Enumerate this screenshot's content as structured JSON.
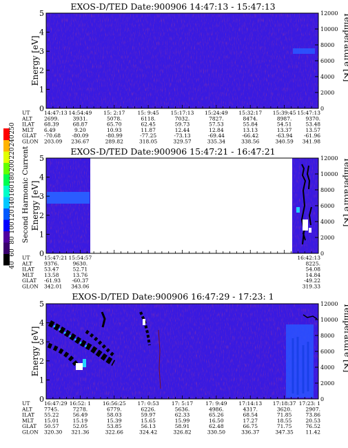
{
  "chart_data": [
    {
      "type": "heatmap",
      "title": "EXOS-D/TED   Date:900906  14:47:13 - 15:47:13",
      "ylabel": "Energy [eV]",
      "y2label": "Temperature [K]",
      "ylim": [
        0,
        5
      ],
      "yticks": [
        "0",
        "1",
        "2",
        "3",
        "4",
        "5"
      ],
      "y2lim": [
        0,
        12000
      ],
      "y2ticks": [
        "0",
        "2000",
        "4000",
        "6000",
        "8000",
        "10000",
        "12000"
      ],
      "data_coverage": [
        0,
        1
      ],
      "background_level": 40,
      "orbit_rows": [
        {
          "label": "UT",
          "values": [
            "14:47:13",
            "14:54:49",
            "15: 2:17",
            "15: 9:45",
            "15:17:13",
            "15:24:49",
            "15:32:17",
            "15:39:45",
            "15:47:13"
          ]
        },
        {
          "label": "ALT",
          "values": [
            "2699.",
            "3931.",
            "5078.",
            "6118.",
            "7032.",
            "7827.",
            "8474.",
            "8987.",
            "9370."
          ]
        },
        {
          "label": "ILAT",
          "values": [
            "68.39",
            "68.87",
            "65.70",
            "62.45",
            "59.73",
            "57.53",
            "55.84",
            "54.51",
            "53.48"
          ]
        },
        {
          "label": "MLT",
          "values": [
            "6.49",
            "9.20",
            "10.93",
            "11.87",
            "12.44",
            "12.84",
            "13.13",
            "13.37",
            "13.57"
          ]
        },
        {
          "label": "GLAT",
          "values": [
            "-70.68",
            "-80.09",
            "-80.99",
            "-77.25",
            "-73.13",
            "-69.44",
            "-66.42",
            "-63.94",
            "-61.96"
          ]
        },
        {
          "label": "GLON",
          "values": [
            "203.09",
            "236.67",
            "289.82",
            "318.05",
            "329.57",
            "335.34",
            "338.56",
            "340.59",
            "341.98"
          ]
        }
      ]
    },
    {
      "type": "heatmap",
      "title": "EXOS-D/TED   Date:900906  15:47:21 - 16:47:21",
      "ylabel": "Energy [eV]",
      "y2label": "Temperature [K]",
      "ylim": [
        0,
        5
      ],
      "yticks": [
        "0",
        "1",
        "2",
        "3",
        "4",
        "5"
      ],
      "y2lim": [
        0,
        12000
      ],
      "y2ticks": [
        "0",
        "2000",
        "4000",
        "6000",
        "8000",
        "10000",
        "12000"
      ],
      "data_coverage": [
        [
          0,
          0.14
        ],
        [
          0.935,
          1
        ]
      ],
      "background_level": 40,
      "orbit_rows": [
        {
          "label": "UT",
          "values": [
            "15:47:21",
            "15:54:57",
            "",
            "",
            "",
            "",
            "",
            "",
            "16:42:13"
          ]
        },
        {
          "label": "ALT",
          "values": [
            "9376.",
            "9630.",
            "",
            "",
            "",
            "",
            "",
            "",
            "8225."
          ]
        },
        {
          "label": "ILAT",
          "values": [
            "53.47",
            "52.71",
            "",
            "",
            "",
            "",
            "",
            "",
            "54.08"
          ]
        },
        {
          "label": "MLT",
          "values": [
            "13.58",
            "13.76",
            "",
            "",
            "",
            "",
            "",
            "",
            "14.84"
          ]
        },
        {
          "label": "GLAT",
          "values": [
            "-61.93",
            "-60.37",
            "",
            "",
            "",
            "",
            "",
            "",
            "-49.22"
          ]
        },
        {
          "label": "GLON",
          "values": [
            "342.01",
            "343.06",
            "",
            "",
            "",
            "",
            "",
            "",
            "319.33"
          ]
        }
      ]
    },
    {
      "type": "heatmap",
      "title": "EXOS-D/TED   Date:900906  16:47:29 - 17:23: 1",
      "ylabel": "Energy [eV]",
      "y2label": "Temperature [K]",
      "ylim": [
        0,
        5
      ],
      "yticks": [
        "0",
        "1",
        "2",
        "3",
        "4",
        "5"
      ],
      "y2lim": [
        0,
        12000
      ],
      "y2ticks": [
        "0",
        "2000",
        "4000",
        "6000",
        "8000",
        "10000",
        "12000"
      ],
      "data_coverage": [
        0,
        1
      ],
      "background_level": 40,
      "orbit_rows": [
        {
          "label": "UT",
          "values": [
            "16:47:29",
            "16:52: 1",
            "16:56:25",
            "17: 0:53",
            "17: 5:17",
            "17: 9:49",
            "17:14:13",
            "17:18:37",
            "17:23: 1"
          ]
        },
        {
          "label": "ALT",
          "values": [
            "7745.",
            "7278.",
            "6779.",
            "6226.",
            "5636.",
            "4986.",
            "4317.",
            "3620.",
            "2907."
          ]
        },
        {
          "label": "ILAT",
          "values": [
            "55.22",
            "56.49",
            "58.03",
            "59.97",
            "62.33",
            "65.26",
            "68.54",
            "71.85",
            "73.86"
          ]
        },
        {
          "label": "MLT",
          "values": [
            "15.01",
            "15.19",
            "15.39",
            "15.65",
            "15.99",
            "16.50",
            "17.27",
            "18.55",
            "20.53"
          ]
        },
        {
          "label": "GLAT",
          "values": [
            "50.57",
            "52.05",
            "53.85",
            "56.13",
            "58.91",
            "62.48",
            "66.75",
            "71.75",
            "76.52"
          ]
        },
        {
          "label": "GLON",
          "values": [
            "320.30",
            "321.36",
            "322.66",
            "324.42",
            "326.82",
            "330.50",
            "336.37",
            "347.35",
            "11.42"
          ]
        }
      ]
    }
  ],
  "colorbar": {
    "label": "Second Harmonic Current",
    "levels": [
      "40",
      "60",
      "80",
      "100",
      "120",
      "140",
      "160",
      "180",
      "200",
      "220",
      "240",
      "250"
    ],
    "colors": [
      "#000000",
      "#3a006e",
      "#5000a0",
      "#0000ff",
      "#005aff",
      "#00c8ff",
      "#00ffc8",
      "#00ff50",
      "#64ff00",
      "#e1ff00",
      "#ffb400",
      "#ff0000"
    ]
  },
  "colors": {
    "background_fill": "#3a1ae0",
    "trace": "#7a1020"
  }
}
